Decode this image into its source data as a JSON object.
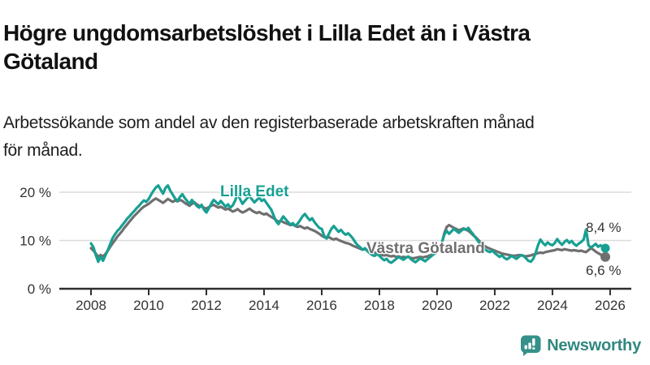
{
  "header": {
    "title_lines": [
      "Högre ungdomsarbetslöshet i Lilla Edet än i Västra",
      "Götaland"
    ],
    "subtitle_lines": [
      "Arbetssökande som andel av den registerbaserade arbetskraften månad",
      "för månad."
    ]
  },
  "chart_data": {
    "type": "line",
    "unit": "percent of registered labour force",
    "x_range": [
      "2008-01",
      "2025-11"
    ],
    "points_per_series": 215,
    "ylim": [
      0,
      22
    ],
    "grid": "horizontal",
    "y_ticks": [
      {
        "value": 0,
        "label": "0 %"
      },
      {
        "value": 10,
        "label": "10 %"
      },
      {
        "value": 20,
        "label": "20 %"
      }
    ],
    "x_ticks": [
      {
        "year": 2008,
        "label": "2008"
      },
      {
        "year": 2010,
        "label": "2010"
      },
      {
        "year": 2012,
        "label": "2012"
      },
      {
        "year": 2014,
        "label": "2014"
      },
      {
        "year": 2016,
        "label": "2016"
      },
      {
        "year": 2018,
        "label": "2018"
      },
      {
        "year": 2020,
        "label": "2020"
      },
      {
        "year": 2022,
        "label": "2022"
      },
      {
        "year": 2024,
        "label": "2024"
      },
      {
        "year": 2026,
        "label": "2026"
      }
    ],
    "series": [
      {
        "name": "Västra Götaland",
        "color": "#6f6f6f",
        "end_label": "6,6 %",
        "end_value": 6.6,
        "values": [
          8.4,
          7.9,
          7.3,
          6.6,
          7.0,
          6.7,
          7.2,
          7.9,
          8.7,
          9.4,
          10.1,
          10.8,
          11.4,
          12.0,
          12.7,
          13.3,
          13.9,
          14.5,
          15.1,
          15.6,
          16.1,
          16.6,
          17.0,
          17.3,
          17.6,
          18.0,
          18.4,
          18.7,
          18.4,
          18.1,
          17.8,
          18.2,
          18.6,
          18.3,
          18.0,
          18.3,
          18.1,
          18.4,
          18.2,
          17.8,
          17.5,
          17.2,
          17.6,
          17.9,
          17.5,
          17.2,
          17.0,
          16.8,
          16.6,
          16.9,
          17.2,
          17.4,
          17.1,
          16.8,
          17.0,
          16.7,
          16.4,
          16.6,
          16.3,
          16.0,
          16.2,
          16.5,
          16.1,
          15.8,
          16.0,
          16.3,
          16.6,
          16.2,
          15.9,
          15.7,
          15.9,
          15.6,
          15.4,
          15.6,
          15.2,
          14.9,
          14.6,
          14.2,
          13.9,
          14.1,
          13.8,
          13.6,
          13.4,
          13.2,
          13.3,
          13.0,
          12.8,
          13.0,
          12.7,
          12.5,
          12.7,
          12.4,
          12.2,
          12.0,
          11.7,
          11.4,
          11.0,
          10.7,
          10.5,
          10.7,
          10.4,
          10.2,
          10.4,
          10.1,
          9.9,
          9.7,
          9.5,
          9.4,
          9.2,
          8.9,
          8.7,
          8.5,
          8.3,
          8.1,
          8.2,
          8.0,
          7.8,
          7.6,
          7.5,
          7.4,
          7.2,
          7.0,
          6.9,
          7.0,
          6.8,
          6.7,
          6.8,
          6.6,
          6.7,
          6.5,
          6.6,
          6.5,
          6.6,
          6.4,
          6.3,
          6.4,
          6.5,
          6.6,
          6.5,
          6.6,
          6.7,
          6.9,
          7.1,
          7.3,
          7.6,
          8.2,
          9.5,
          11.5,
          12.8,
          13.2,
          12.9,
          12.6,
          12.4,
          12.1,
          12.3,
          12.5,
          12.3,
          12.0,
          11.6,
          11.1,
          10.7,
          10.2,
          9.7,
          9.2,
          8.8,
          8.5,
          8.3,
          8.1,
          7.9,
          7.7,
          7.5,
          7.3,
          7.2,
          7.1,
          7.0,
          6.9,
          6.8,
          6.9,
          7.0,
          6.9,
          6.8,
          6.7,
          6.8,
          6.9,
          7.1,
          7.2,
          7.4,
          7.5,
          7.4,
          7.6,
          7.7,
          7.8,
          7.9,
          8.0,
          8.2,
          8.1,
          8.0,
          8.2,
          8.1,
          8.0,
          7.9,
          8.0,
          7.9,
          7.8,
          7.9,
          7.7,
          7.6,
          8.0,
          8.4,
          8.1,
          7.7,
          7.4,
          7.1,
          6.8,
          6.6
        ]
      },
      {
        "name": "Lilla Edet",
        "color": "#17a093",
        "end_label": "8,4 %",
        "end_value": 8.4,
        "values": [
          9.4,
          8.6,
          7.0,
          5.6,
          6.6,
          5.8,
          6.9,
          8.0,
          9.3,
          10.5,
          11.3,
          12.0,
          12.5,
          13.2,
          13.8,
          14.5,
          15.0,
          15.6,
          16.1,
          16.7,
          17.2,
          17.8,
          18.3,
          18.0,
          18.6,
          19.5,
          20.3,
          21.0,
          21.4,
          20.5,
          19.7,
          20.9,
          21.4,
          20.3,
          19.5,
          18.7,
          18.2,
          19.0,
          19.6,
          18.8,
          18.2,
          17.6,
          18.4,
          17.8,
          17.2,
          16.8,
          17.4,
          16.4,
          15.8,
          16.6,
          17.6,
          18.4,
          18.0,
          17.5,
          18.2,
          17.6,
          17.0,
          17.5,
          16.8,
          17.3,
          18.3,
          19.7,
          18.6,
          17.6,
          18.2,
          18.8,
          19.2,
          18.5,
          17.9,
          18.4,
          18.9,
          18.2,
          18.5,
          17.8,
          17.1,
          16.4,
          15.2,
          14.0,
          13.4,
          14.2,
          15.0,
          14.4,
          13.8,
          13.3,
          13.6,
          13.0,
          13.5,
          14.2,
          15.0,
          15.5,
          14.8,
          14.2,
          14.6,
          13.8,
          13.2,
          12.6,
          12.4,
          11.0,
          10.4,
          11.4,
          12.4,
          13.0,
          12.4,
          11.8,
          12.2,
          11.6,
          11.2,
          11.5,
          11.0,
          10.4,
          9.6,
          9.0,
          8.6,
          8.1,
          8.4,
          7.8,
          7.4,
          7.0,
          6.8,
          7.2,
          6.8,
          6.3,
          5.9,
          6.2,
          5.6,
          5.4,
          5.8,
          6.2,
          6.6,
          6.3,
          6.0,
          6.4,
          6.7,
          6.2,
          5.8,
          5.5,
          5.9,
          6.3,
          6.0,
          5.7,
          6.1,
          6.5,
          6.9,
          7.3,
          7.8,
          8.4,
          9.6,
          11.2,
          12.0,
          11.4,
          11.9,
          12.4,
          12.0,
          11.6,
          12.0,
          12.4,
          12.2,
          12.6,
          11.9,
          11.3,
          10.6,
          9.9,
          9.2,
          8.6,
          8.1,
          7.8,
          7.6,
          7.9,
          7.4,
          7.0,
          6.6,
          6.9,
          6.4,
          6.1,
          6.4,
          6.8,
          6.5,
          6.2,
          6.6,
          7.0,
          6.8,
          6.3,
          5.8,
          5.6,
          6.2,
          7.4,
          9.0,
          10.2,
          9.5,
          9.0,
          9.6,
          9.2,
          9.0,
          9.5,
          10.3,
          9.6,
          9.1,
          9.7,
          10.1,
          9.5,
          9.9,
          9.3,
          8.9,
          9.4,
          9.7,
          10.2,
          12.3,
          9.0,
          8.5,
          8.9,
          9.3,
          8.7,
          9.0,
          8.6,
          8.4
        ]
      }
    ]
  },
  "footer": {
    "brand": "Newsworthy",
    "brand_color": "#30887f",
    "logo_icon": "bar-chart-speech-bubble"
  },
  "colors": {
    "lilla_edet": "#17a093",
    "vastra_gotaland": "#6f6f6f",
    "gridline": "#dcdcdc",
    "axis": "#2e2e2e",
    "text": "#333333"
  }
}
